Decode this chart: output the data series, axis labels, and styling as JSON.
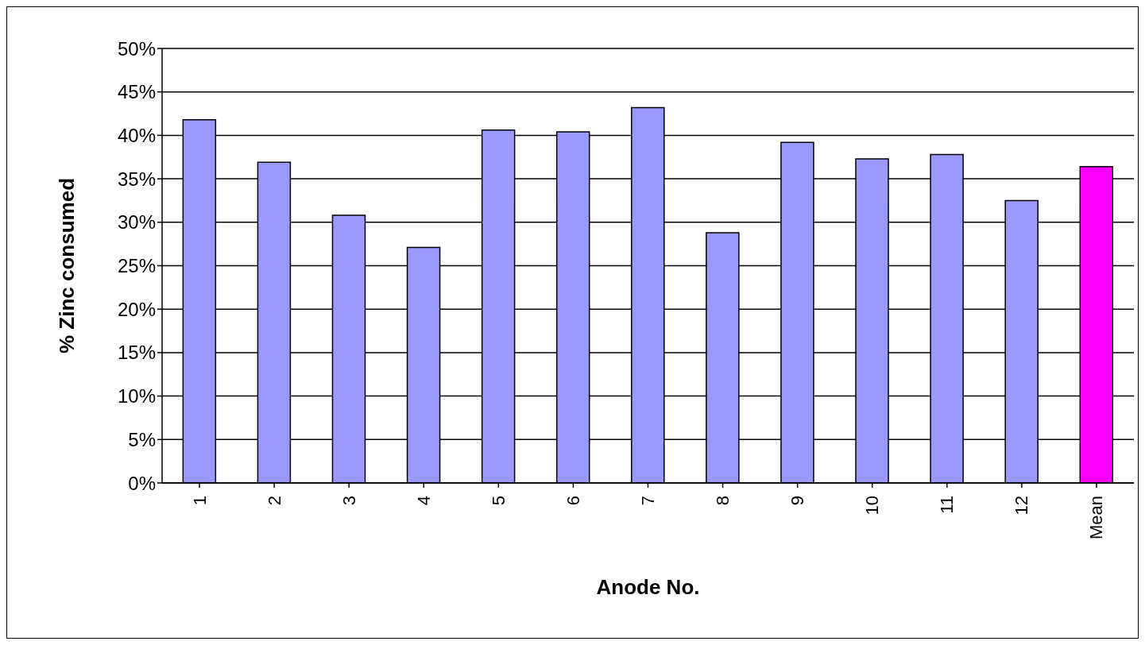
{
  "chart_data": {
    "type": "bar",
    "xlabel": "Anode No.",
    "ylabel": "% Zinc consumed",
    "categories": [
      "1",
      "2",
      "3",
      "4",
      "5",
      "6",
      "7",
      "8",
      "9",
      "10",
      "11",
      "12",
      "Mean"
    ],
    "values": [
      41.8,
      36.9,
      30.8,
      27.1,
      40.6,
      40.4,
      43.2,
      28.8,
      39.2,
      37.3,
      37.8,
      32.5,
      36.4
    ],
    "colors": [
      "#9999ff",
      "#9999ff",
      "#9999ff",
      "#9999ff",
      "#9999ff",
      "#9999ff",
      "#9999ff",
      "#9999ff",
      "#9999ff",
      "#9999ff",
      "#9999ff",
      "#9999ff",
      "#ff00ff"
    ],
    "ylim": [
      0,
      50
    ],
    "yticks": [
      {
        "value": 0,
        "label": "0%"
      },
      {
        "value": 5,
        "label": "5%"
      },
      {
        "value": 10,
        "label": "10%"
      },
      {
        "value": 15,
        "label": "15%"
      },
      {
        "value": 20,
        "label": "20%"
      },
      {
        "value": 25,
        "label": "25%"
      },
      {
        "value": 30,
        "label": "30%"
      },
      {
        "value": 35,
        "label": "35%"
      },
      {
        "value": 40,
        "label": "40%"
      },
      {
        "value": 45,
        "label": "45%"
      },
      {
        "value": 50,
        "label": "50%"
      }
    ],
    "grid": "y",
    "legend": false
  }
}
